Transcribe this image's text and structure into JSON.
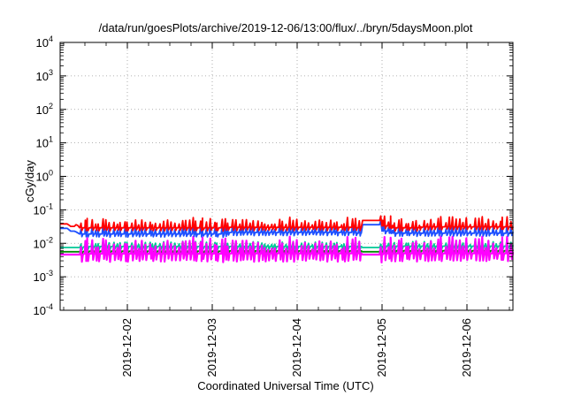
{
  "chart_data": {
    "type": "line",
    "title": "/data/run/goesPlots/archive/2019-12-06/13:00/flux/../bryn/5daysMoon.plot",
    "xlabel": "Coordinated Universal Time (UTC)",
    "ylabel": "cGy/day",
    "x_range": [
      "2019-12-01T05:00",
      "2019-12-06T13:00"
    ],
    "x_ticks": [
      "2019-12-02",
      "2019-12-03",
      "2019-12-04",
      "2019-12-05",
      "2019-12-06"
    ],
    "y_scale": "log",
    "ylim": [
      0.0001,
      10000
    ],
    "y_ticks": [
      {
        "base": "10",
        "exp": "-4"
      },
      {
        "base": "10",
        "exp": "-3"
      },
      {
        "base": "10",
        "exp": "-2"
      },
      {
        "base": "10",
        "exp": "-1"
      },
      {
        "base": "10",
        "exp": "0"
      },
      {
        "base": "10",
        "exp": "1"
      },
      {
        "base": "10",
        "exp": "2"
      },
      {
        "base": "10",
        "exp": "3"
      },
      {
        "base": "10",
        "exp": "4"
      }
    ],
    "grid": true,
    "series": [
      {
        "color": "#ff0000",
        "baseline": 0.028,
        "points": [
          [
            "2019-12-01T05:00",
            0.038
          ],
          [
            "2019-12-01T07:00",
            0.038
          ],
          [
            "2019-12-01T08:00",
            0.032
          ],
          [
            "2019-12-01T09:00",
            0.032
          ],
          [
            "2019-12-01T09:30",
            0.036
          ],
          [
            "2019-12-01T10:00",
            0.034
          ],
          [
            "2019-12-01T10:30",
            0.029
          ],
          [
            "2019-12-01T12:00",
            0.029
          ],
          [
            "2019-12-03T04:00",
            0.03
          ],
          [
            "2019-12-03T06:00",
            0.03
          ],
          [
            "2019-12-04T16:00",
            0.029
          ],
          [
            "2019-12-04T18:00",
            0.029
          ],
          [
            "2019-12-04T18:30",
            0.048
          ],
          [
            "2019-12-04T22:00",
            0.048
          ],
          [
            "2019-12-05T00:00",
            0.033
          ],
          [
            "2019-12-05T02:00",
            0.034
          ],
          [
            "2019-12-05T02:30",
            0.029
          ],
          [
            "2019-12-05T11:00",
            0.031
          ],
          [
            "2019-12-06T13:00",
            0.03
          ]
        ]
      },
      {
        "color": "#1e50ff",
        "baseline": 0.018,
        "points": [
          [
            "2019-12-01T05:00",
            0.028
          ],
          [
            "2019-12-01T07:00",
            0.028
          ],
          [
            "2019-12-01T08:00",
            0.023
          ],
          [
            "2019-12-01T09:00",
            0.023
          ],
          [
            "2019-12-01T09:30",
            0.022
          ],
          [
            "2019-12-01T10:30",
            0.019
          ],
          [
            "2019-12-01T12:00",
            0.019
          ],
          [
            "2019-12-03T04:00",
            0.021
          ],
          [
            "2019-12-03T06:00",
            0.021
          ],
          [
            "2019-12-04T16:00",
            0.02
          ],
          [
            "2019-12-04T18:00",
            0.02
          ],
          [
            "2019-12-04T18:30",
            0.036
          ],
          [
            "2019-12-04T22:00",
            0.036
          ],
          [
            "2019-12-05T00:00",
            0.023
          ],
          [
            "2019-12-05T02:00",
            0.024
          ],
          [
            "2019-12-05T02:30",
            0.02
          ],
          [
            "2019-12-06T13:00",
            0.021
          ]
        ]
      },
      {
        "color": "#00c896",
        "baseline": 0.0075,
        "points": [
          [
            "2019-12-01T05:00",
            0.0075
          ],
          [
            "2019-12-01T10:00",
            0.0075
          ],
          [
            "2019-12-01T12:00",
            0.008
          ],
          [
            "2019-12-03T04:00",
            0.008
          ],
          [
            "2019-12-04T18:00",
            0.0078
          ],
          [
            "2019-12-04T18:30",
            0.0075
          ],
          [
            "2019-12-04T22:00",
            0.0075
          ],
          [
            "2019-12-05T00:00",
            0.0082
          ],
          [
            "2019-12-06T13:00",
            0.0085
          ]
        ]
      },
      {
        "color": "#008c00",
        "baseline": 0.0056,
        "points": [
          [
            "2019-12-01T05:00",
            0.0056
          ],
          [
            "2019-12-01T12:00",
            0.0058
          ],
          [
            "2019-12-03T04:00",
            0.0059
          ],
          [
            "2019-12-04T18:00",
            0.0058
          ],
          [
            "2019-12-04T18:30",
            0.0056
          ],
          [
            "2019-12-04T22:00",
            0.0056
          ],
          [
            "2019-12-05T00:00",
            0.006
          ],
          [
            "2019-12-06T13:00",
            0.0062
          ]
        ]
      },
      {
        "color": "#ff00ff",
        "baseline": 0.0048,
        "points": [
          [
            "2019-12-01T05:00",
            0.0046
          ],
          [
            "2019-12-01T10:00",
            0.0046
          ],
          [
            "2019-12-01T12:00",
            0.0049
          ],
          [
            "2019-12-03T04:00",
            0.005
          ],
          [
            "2019-12-04T18:00",
            0.0049
          ],
          [
            "2019-12-04T18:30",
            0.0046
          ],
          [
            "2019-12-04T22:00",
            0.0046
          ],
          [
            "2019-12-05T00:00",
            0.005
          ],
          [
            "2019-12-06T13:00",
            0.0052
          ]
        ]
      }
    ],
    "spikes": {
      "start": "2019-12-01T10:30",
      "end": "2019-12-06T13:00",
      "gaps": [
        [
          "2019-12-04T18:00",
          "2019-12-04T22:30"
        ]
      ],
      "count": 120
    }
  }
}
